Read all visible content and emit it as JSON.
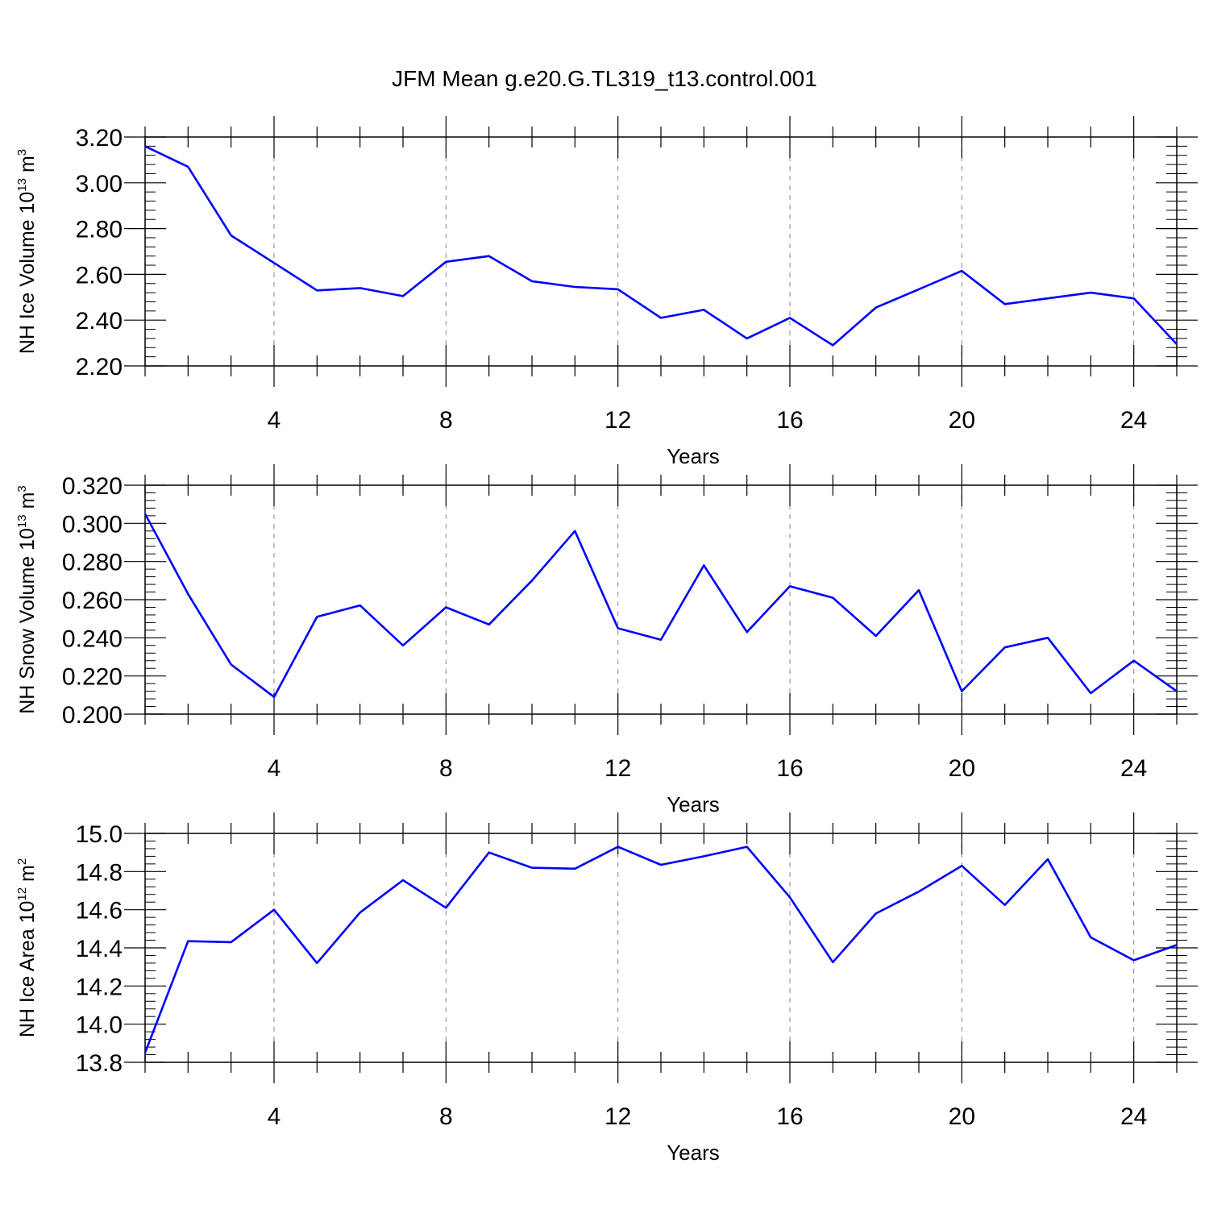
{
  "title": "JFM Mean g.e20.G.TL319_t13.control.001",
  "colors": {
    "series": "#0000ff",
    "axis": "#000000",
    "grid": "#888888"
  },
  "chart_data": [
    {
      "type": "line",
      "ylabel": {
        "main": "NH Ice Volume 10",
        "sup1": "13",
        "mid": " m",
        "sup2": "3"
      },
      "xlabel": "Years",
      "xlim": [
        1,
        25
      ],
      "ylim": [
        2.2,
        3.2
      ],
      "yticks": [
        "2.20",
        "2.40",
        "2.60",
        "2.80",
        "3.00",
        "3.20"
      ],
      "ytick_values": [
        2.2,
        2.4,
        2.6,
        2.8,
        3.0,
        3.2
      ],
      "xticks": [
        "4",
        "8",
        "12",
        "16",
        "20",
        "24"
      ],
      "xtick_values": [
        4,
        8,
        12,
        16,
        20,
        24
      ],
      "grid": "vertical dashed",
      "series": [
        {
          "x": [
            1,
            2,
            3,
            4,
            5,
            6,
            7,
            8,
            9,
            10,
            11,
            12,
            13,
            14,
            15,
            16,
            17,
            18,
            19,
            20,
            21,
            22,
            23,
            24,
            25
          ],
          "values": [
            3.16,
            3.07,
            2.77,
            2.65,
            2.53,
            2.54,
            2.505,
            2.655,
            2.68,
            2.57,
            2.545,
            2.535,
            2.41,
            2.445,
            2.32,
            2.41,
            2.29,
            2.455,
            2.535,
            2.615,
            2.47,
            2.495,
            2.52,
            2.495,
            2.295
          ]
        }
      ]
    },
    {
      "type": "line",
      "ylabel": {
        "main": "NH Snow Volume 10",
        "sup1": "13",
        "mid": " m",
        "sup2": "3"
      },
      "xlabel": "Years",
      "xlim": [
        1,
        25
      ],
      "ylim": [
        0.2,
        0.32
      ],
      "yticks": [
        "0.200",
        "0.220",
        "0.240",
        "0.260",
        "0.280",
        "0.300",
        "0.320"
      ],
      "ytick_values": [
        0.2,
        0.22,
        0.24,
        0.26,
        0.28,
        0.3,
        0.32
      ],
      "xticks": [
        "4",
        "8",
        "12",
        "16",
        "20",
        "24"
      ],
      "xtick_values": [
        4,
        8,
        12,
        16,
        20,
        24
      ],
      "grid": "vertical dashed",
      "series": [
        {
          "x": [
            1,
            2,
            3,
            4,
            5,
            6,
            7,
            8,
            9,
            10,
            11,
            12,
            13,
            14,
            15,
            16,
            17,
            18,
            19,
            20,
            21,
            22,
            23,
            24,
            25
          ],
          "values": [
            0.305,
            0.263,
            0.226,
            0.209,
            0.251,
            0.257,
            0.236,
            0.256,
            0.247,
            0.27,
            0.296,
            0.245,
            0.239,
            0.278,
            0.243,
            0.267,
            0.261,
            0.241,
            0.265,
            0.212,
            0.235,
            0.24,
            0.211,
            0.228,
            0.212
          ]
        }
      ]
    },
    {
      "type": "line",
      "ylabel": {
        "main": "NH Ice Area 10",
        "sup1": "12",
        "mid": " m",
        "sup2": "2"
      },
      "xlabel": "Years",
      "xlim": [
        1,
        25
      ],
      "ylim": [
        13.8,
        15.0
      ],
      "yticks": [
        "13.8",
        "14.0",
        "14.2",
        "14.4",
        "14.6",
        "14.8",
        "15.0"
      ],
      "ytick_values": [
        13.8,
        14.0,
        14.2,
        14.4,
        14.6,
        14.8,
        15.0
      ],
      "xticks": [
        "4",
        "8",
        "12",
        "16",
        "20",
        "24"
      ],
      "xtick_values": [
        4,
        8,
        12,
        16,
        20,
        24
      ],
      "grid": "vertical dashed",
      "series": [
        {
          "x": [
            1,
            2,
            3,
            4,
            5,
            6,
            7,
            8,
            9,
            10,
            11,
            12,
            13,
            14,
            15,
            16,
            17,
            18,
            19,
            20,
            21,
            22,
            23,
            24,
            25
          ],
          "values": [
            13.85,
            14.435,
            14.43,
            14.6,
            14.32,
            14.585,
            14.755,
            14.61,
            14.9,
            14.82,
            14.815,
            14.93,
            14.835,
            14.88,
            14.93,
            14.665,
            14.325,
            14.58,
            14.695,
            14.83,
            14.625,
            14.865,
            14.455,
            14.335,
            14.415
          ]
        }
      ]
    }
  ]
}
